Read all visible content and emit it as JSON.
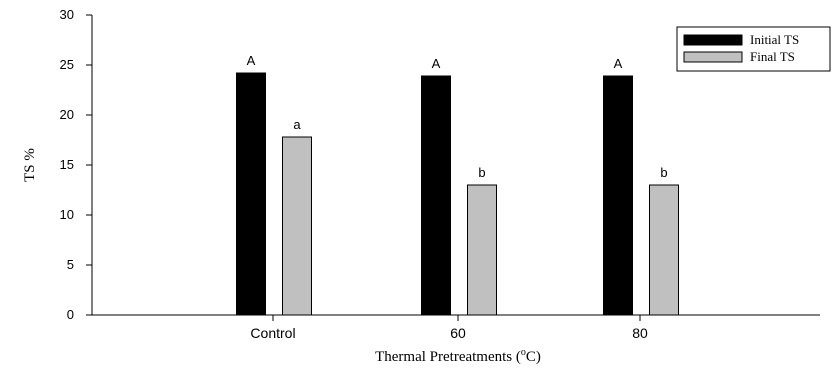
{
  "chart_data": {
    "type": "bar",
    "categories": [
      "Control",
      "60",
      "80"
    ],
    "series": [
      {
        "name": "Initial TS",
        "values": [
          24.2,
          23.9,
          23.9
        ],
        "labels": [
          "A",
          "A",
          "A"
        ],
        "color": "#000000"
      },
      {
        "name": "Final TS",
        "values": [
          17.8,
          13.0,
          13.0
        ],
        "labels": [
          "a",
          "b",
          "b"
        ],
        "color": "#c0c0c0"
      }
    ],
    "xlabel_main": "Thermal Pretreatments (",
    "xlabel_sup": "o",
    "xlabel_end": "C)",
    "ylabel": "TS %",
    "ylim": [
      0,
      30
    ],
    "yticks": [
      0,
      5,
      10,
      15,
      20,
      25,
      30
    ],
    "grid": false,
    "legend_position": "top-right"
  }
}
